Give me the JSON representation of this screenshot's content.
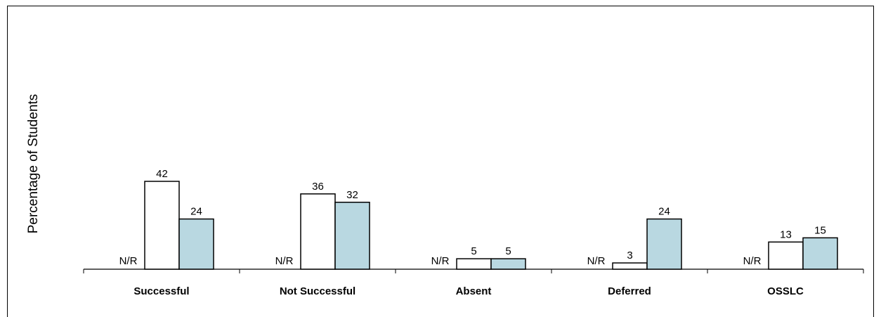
{
  "chart_data": {
    "type": "bar",
    "ylabel": "Percentage of Students",
    "xlabel": "",
    "categories": [
      "Successful",
      "Not Successful",
      "Absent",
      "Deferred",
      "OSSLC"
    ],
    "ylim": [
      0,
      50
    ],
    "series": [
      {
        "values": [
          "N/R",
          "N/R",
          "N/R",
          "N/R",
          "N/R"
        ],
        "color": "#ffffff"
      },
      {
        "values": [
          42,
          36,
          5,
          3,
          13
        ],
        "color": "#ffffff"
      },
      {
        "values": [
          24,
          32,
          5,
          24,
          15
        ],
        "color": "#b9d8e1"
      }
    ],
    "grid": false,
    "legend": "none"
  }
}
